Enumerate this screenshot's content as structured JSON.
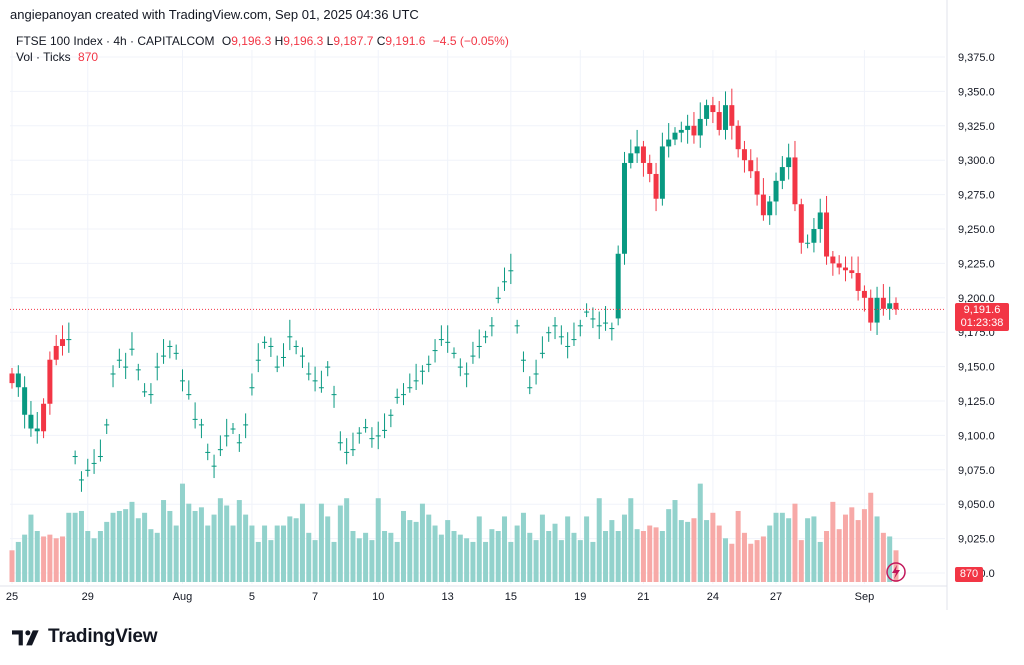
{
  "header": {
    "attribution": "angiepanoyan created with TradingView.com, Sep 01, 2025 04:36 UTC"
  },
  "legend": {
    "symbol": "FTSE 100 Index · 4h · CAPITALCOM",
    "o_label": "O",
    "o_value": "9,196.3",
    "h_label": "H",
    "h_value": "9,196.3",
    "l_label": "L",
    "l_value": "9,187.7",
    "c_label": "C",
    "c_value": "9,191.6",
    "change": "−4.5 (−0.05%)",
    "vol_label": "Vol · Ticks",
    "vol_value": "870"
  },
  "price_tag": {
    "price": "9,191.6",
    "countdown": "01:23:38"
  },
  "volume_tag": "870",
  "footer": {
    "brand": "TradingView"
  },
  "colors": {
    "up": "#089981",
    "down": "#f23645",
    "up_vol": "#92d2cc",
    "down_vol": "#f7a9a7",
    "grid": "#f0f3fa"
  },
  "icons": {
    "logo": "tradingview-logo-icon",
    "flash": "flash-icon"
  },
  "chart_data": {
    "type": "candlestick",
    "title": "FTSE 100 Index · 4h · CAPITALCOM",
    "ylim": [
      9000,
      9388
    ],
    "y_ticks": [
      "9,375.0",
      "9,350.0",
      "9,325.0",
      "9,300.0",
      "9,275.0",
      "9,250.0",
      "9,225.0",
      "9,200.0",
      "9,175.0",
      "9,150.0",
      "9,125.0",
      "9,100.0",
      "9,075.0",
      "9,050.0",
      "9,025.0",
      "9,000.0"
    ],
    "x_ticks": [
      {
        "label": "25",
        "index": 0
      },
      {
        "label": "29",
        "index": 12
      },
      {
        "label": "Aug",
        "index": 27
      },
      {
        "label": "5",
        "index": 38
      },
      {
        "label": "7",
        "index": 48
      },
      {
        "label": "10",
        "index": 58
      },
      {
        "label": "13",
        "index": 69
      },
      {
        "label": "15",
        "index": 79
      },
      {
        "label": "19",
        "index": 90
      },
      {
        "label": "21",
        "index": 100
      },
      {
        "label": "24",
        "index": 111
      },
      {
        "label": "27",
        "index": 121
      },
      {
        "label": "Sep",
        "index": 135
      }
    ],
    "last_price": 9191.6,
    "volume_last": 870,
    "closes": [
      9138,
      9145,
      9135,
      9115,
      9105,
      9103,
      9123,
      9155,
      9165,
      9170,
      9085,
      9068,
      9075,
      9080,
      9085,
      9108,
      9145,
      9155,
      9150,
      9163,
      9148,
      9132,
      9130,
      9150,
      9158,
      9165,
      9160,
      9140,
      9130,
      9112,
      9108,
      9088,
      9078,
      9090,
      9100,
      9105,
      9095,
      9108,
      9135,
      9155,
      9168,
      9165,
      9150,
      9157,
      9172,
      9165,
      9158,
      9145,
      9140,
      9135,
      9150,
      9130,
      9095,
      9088,
      9090,
      9102,
      9106,
      9098,
      9100,
      9104,
      9115,
      9128,
      9130,
      9135,
      9140,
      9147,
      9152,
      9162,
      9170,
      9168,
      9160,
      9150,
      9145,
      9158,
      9165,
      9172,
      9180,
      9200,
      9212,
      9220,
      9180,
      9155,
      9135,
      9145,
      9160,
      9175,
      9180,
      9172,
      9165,
      9170,
      9180,
      9190,
      9185,
      9180,
      9182,
      9178,
      9232,
      9298,
      9305,
      9310,
      9298,
      9290,
      9272,
      9310,
      9315,
      9320,
      9322,
      9325,
      9318,
      9330,
      9340,
      9335,
      9322,
      9340,
      9325,
      9308,
      9300,
      9292,
      9275,
      9260,
      9270,
      9285,
      9295,
      9302,
      9268,
      9240,
      9240,
      9250,
      9262,
      9230,
      9225,
      9222,
      9220,
      9218,
      9205,
      9200,
      9182,
      9200,
      9192,
      9196,
      9191.6
    ],
    "opens": [
      9145,
      9135,
      9115,
      9105,
      9103,
      9123,
      9155,
      9165,
      9170,
      9170,
      9085,
      9068,
      9075,
      9080,
      9085,
      9108,
      9145,
      9155,
      9150,
      9163,
      9148,
      9132,
      9130,
      9150,
      9158,
      9165,
      9160,
      9140,
      9130,
      9112,
      9108,
      9088,
      9078,
      9090,
      9100,
      9105,
      9095,
      9108,
      9135,
      9155,
      9168,
      9165,
      9150,
      9157,
      9172,
      9165,
      9158,
      9145,
      9140,
      9135,
      9150,
      9130,
      9095,
      9088,
      9090,
      9102,
      9106,
      9098,
      9100,
      9104,
      9115,
      9128,
      9130,
      9135,
      9140,
      9147,
      9152,
      9162,
      9170,
      9168,
      9160,
      9150,
      9145,
      9158,
      9165,
      9172,
      9180,
      9200,
      9212,
      9220,
      9180,
      9155,
      9135,
      9145,
      9160,
      9175,
      9180,
      9172,
      9165,
      9170,
      9180,
      9190,
      9185,
      9180,
      9182,
      9178,
      9185,
      9232,
      9298,
      9305,
      9310,
      9298,
      9290,
      9272,
      9310,
      9315,
      9320,
      9322,
      9325,
      9318,
      9330,
      9340,
      9335,
      9322,
      9340,
      9325,
      9308,
      9300,
      9292,
      9275,
      9260,
      9270,
      9285,
      9295,
      9302,
      9268,
      9240,
      9240,
      9250,
      9262,
      9230,
      9225,
      9222,
      9220,
      9218,
      9205,
      9200,
      9182,
      9200,
      9192,
      9196.3
    ],
    "volumes": [
      870,
      1100,
      1300,
      1850,
      1400,
      1250,
      1300,
      1200,
      1250,
      1900,
      1900,
      1950,
      1400,
      1200,
      1400,
      1650,
      1900,
      1950,
      2000,
      2200,
      1750,
      1900,
      1450,
      1350,
      2250,
      1950,
      1550,
      2700,
      2150,
      1950,
      2050,
      1550,
      1850,
      2300,
      2100,
      1550,
      2250,
      1850,
      1550,
      1100,
      1550,
      1150,
      1550,
      1550,
      1800,
      1750,
      2150,
      1350,
      1150,
      2150,
      1800,
      1100,
      2100,
      2300,
      1400,
      1200,
      1350,
      1150,
      2300,
      1400,
      1350,
      1100,
      1950,
      1700,
      1650,
      2150,
      1850,
      1550,
      1300,
      1700,
      1400,
      1300,
      1200,
      1100,
      1800,
      1100,
      1450,
      1400,
      1800,
      1100,
      1550,
      1900,
      1350,
      1150,
      1850,
      1400,
      1600,
      1150,
      1800,
      1350,
      1150,
      1800,
      1100,
      2300,
      1400,
      1700,
      1400,
      1850,
      2300,
      1450,
      1400,
      1550,
      1500,
      1400,
      2000,
      2250,
      1700,
      1650,
      1750,
      2700,
      1700,
      1900,
      1550,
      1200,
      1050,
      1950,
      1350,
      1050,
      1150,
      1250,
      1550,
      1900,
      1900,
      1750,
      2150,
      1150,
      1750,
      1800,
      1100,
      1400,
      2200,
      1450,
      1850,
      2050,
      1700,
      2000,
      2450,
      1800,
      1350,
      1250,
      870
    ]
  }
}
